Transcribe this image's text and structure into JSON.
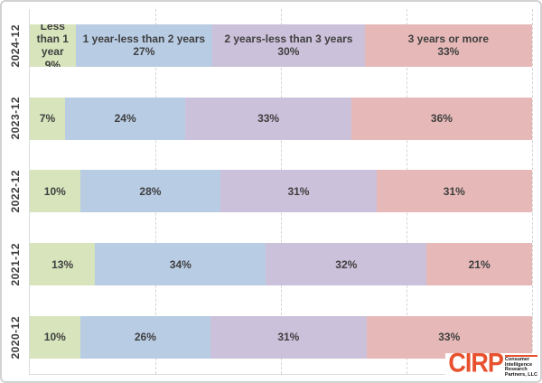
{
  "chart_data": {
    "type": "bar",
    "variant": "stacked-horizontal-100pct",
    "title": "",
    "categories": [
      "2024-12",
      "2023-12",
      "2022-12",
      "2021-12",
      "2020-12"
    ],
    "series": [
      {
        "name": "Less than 1 year",
        "color": "#d7e4bc",
        "values": [
          9,
          7,
          10,
          13,
          10
        ]
      },
      {
        "name": "1 year-less than 2 years",
        "color": "#b8cce4",
        "values": [
          27,
          24,
          28,
          34,
          26
        ]
      },
      {
        "name": "2 years-less than 3 years",
        "color": "#ccc1da",
        "values": [
          30,
          33,
          31,
          32,
          31
        ]
      },
      {
        "name": "3 years or more",
        "color": "#e6b9b8",
        "values": [
          33,
          36,
          31,
          21,
          33
        ]
      }
    ],
    "value_suffix": "%",
    "xlim": [
      0,
      100
    ],
    "gridlines_pct": [
      25,
      50,
      75,
      100
    ],
    "grid_style": "dashed-vertical",
    "legend": "none (series names printed inside first row segments)",
    "first_row_shows_series_names": true,
    "label_color": "#3f3f3f"
  },
  "logo": {
    "acronym": "CIRP",
    "lines": [
      "Consumer",
      "Intelligence",
      "Research",
      "Partners, LLC"
    ],
    "color": "#e8512d"
  }
}
